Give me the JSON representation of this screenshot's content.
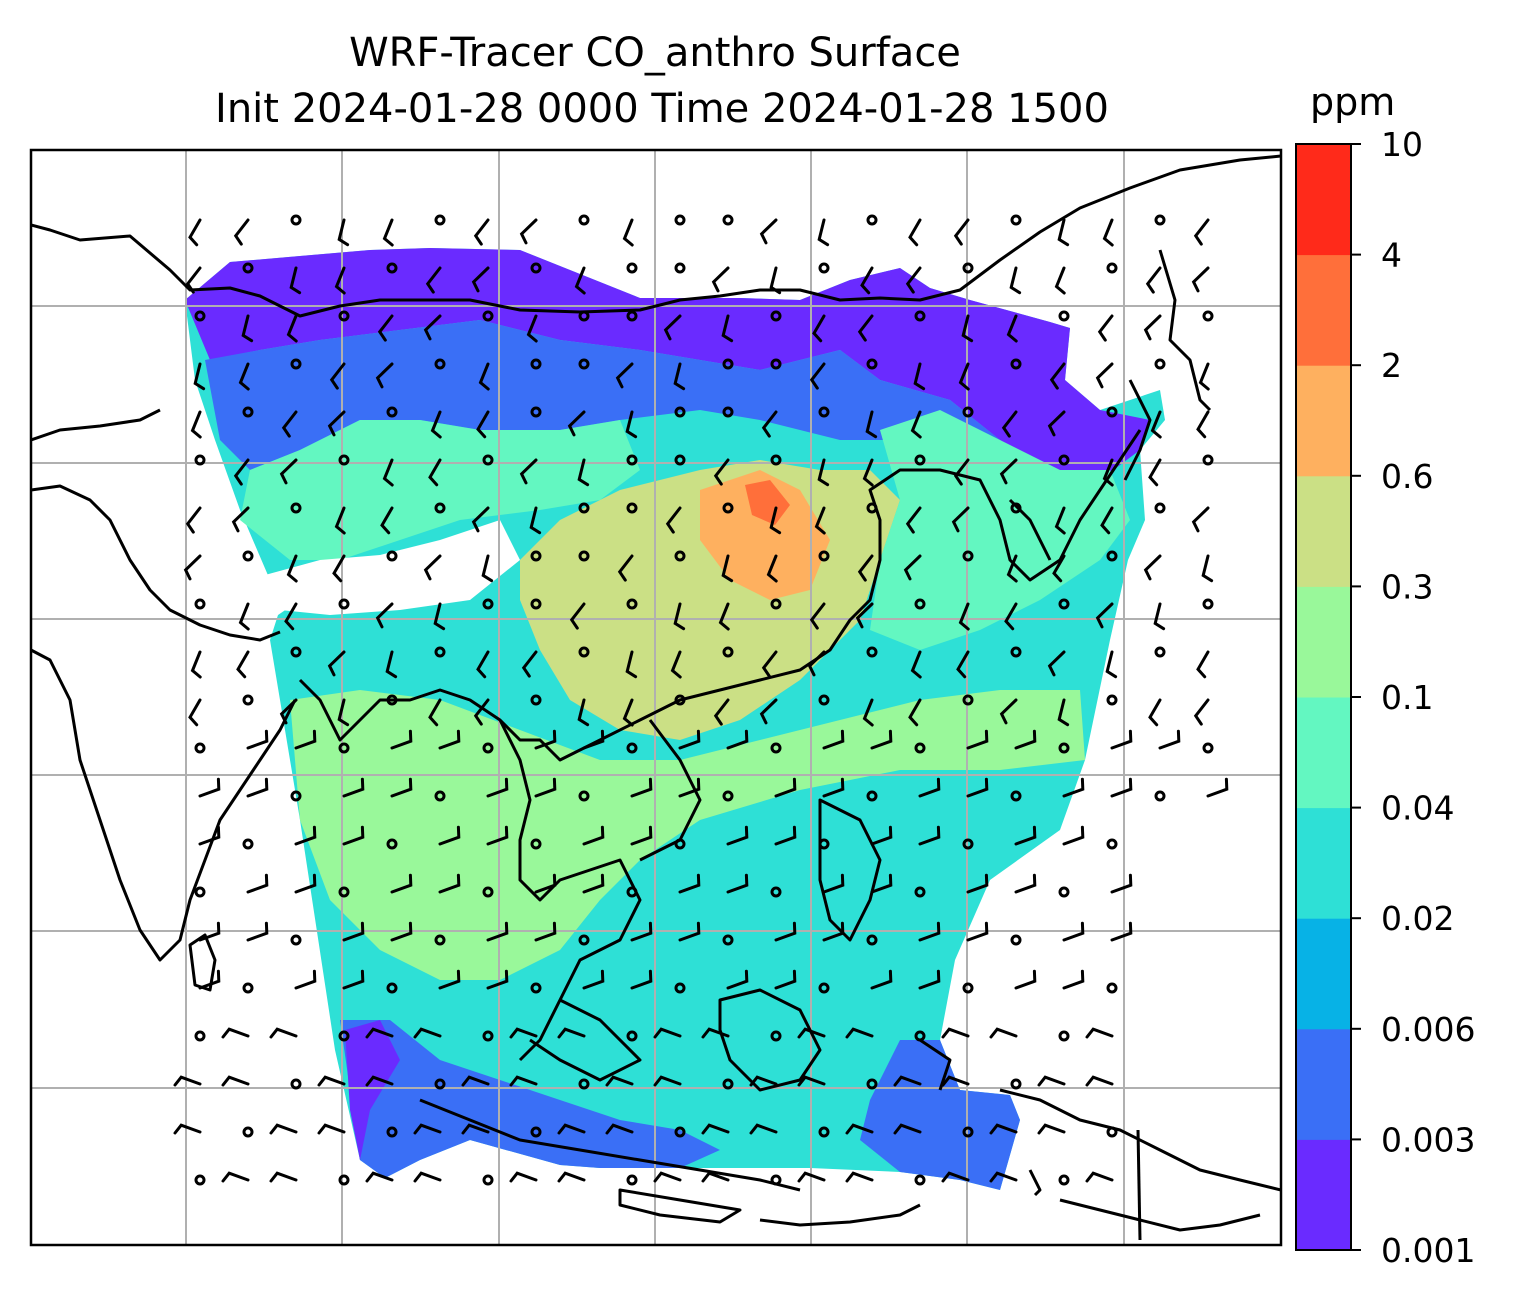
{
  "title_line1": "WRF-Tracer CO_anthro Surface",
  "title_line2": "Init 2024-01-28 0000 Time 2024-01-28 1500",
  "colorbar": {
    "unit": "ppm",
    "levels": [
      "0.001",
      "0.003",
      "0.006",
      "0.02",
      "0.04",
      "0.1",
      "0.3",
      "0.6",
      "2",
      "4",
      "10"
    ],
    "colors": [
      "#6a2bff",
      "#3a6ff6",
      "#07b2e6",
      "#2ee0d6",
      "#63f7c1",
      "#99f89a",
      "#cbe085",
      "#feb05f",
      "#ff6f3a",
      "#ff2a1a"
    ]
  },
  "map": {
    "field": "CO_anthro",
    "level": "Surface",
    "gridlines": true,
    "overlay": "wind barbs and calm-wind circles",
    "coastline_color": "#000000",
    "gridline_color": "#b0b0b0"
  }
}
